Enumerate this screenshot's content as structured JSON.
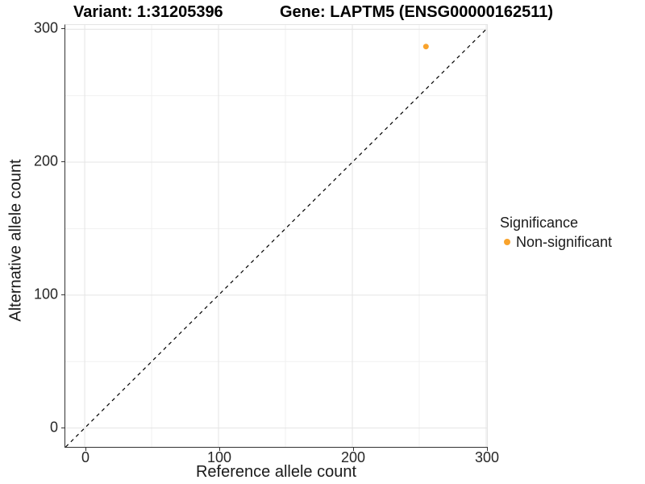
{
  "header": {
    "variant_title": "Variant: 1:31205396",
    "gene_title": "Gene: LAPTM5 (ENSG00000162511)"
  },
  "chart_data": {
    "type": "scatter",
    "title": "Variant: 1:31205396   Gene: LAPTM5 (ENSG00000162511)",
    "xlabel": "Reference allele count",
    "ylabel": "Alternative allele count",
    "xlim": [
      -14.5,
      300.6
    ],
    "ylim": [
      -14.2,
      303.2
    ],
    "x_ticks": [
      0,
      100,
      200,
      300
    ],
    "y_ticks": [
      0,
      100,
      200,
      300
    ],
    "x_minor_ticks": [
      50,
      150,
      250
    ],
    "y_minor_ticks": [
      50,
      150,
      250
    ],
    "grid": "on",
    "identity_line": {
      "slope": 1,
      "intercept": 0,
      "style": "dashed",
      "color": "#000000"
    },
    "series": [
      {
        "name": "Non-significant",
        "color": "#F9A32C",
        "point_radius": 3.5,
        "points": [
          [
            255,
            287
          ]
        ]
      }
    ],
    "legend": {
      "title": "Significance",
      "position": "right",
      "entries": [
        {
          "label": "Non-significant",
          "color": "#F9A32C"
        }
      ]
    }
  },
  "colors": {
    "background": "#ffffff",
    "axis": "#333333",
    "grid_major": "#e4e4e4",
    "grid_minor": "#f0f0f0",
    "identity_line": "#000000",
    "point": "#F9A32C"
  }
}
